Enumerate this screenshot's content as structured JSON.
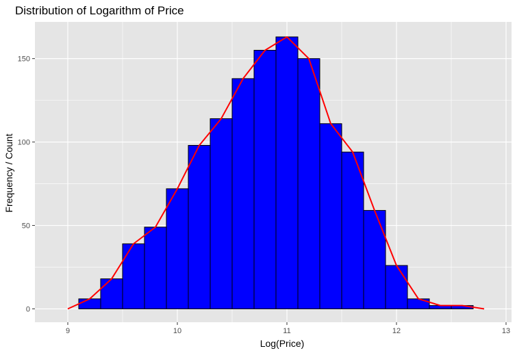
{
  "chart_data": {
    "type": "bar",
    "title": "Distribution of Logarithm of Price",
    "xlabel": "Log(Price)",
    "ylabel": "Frequency / Count",
    "xlim": [
      8.7,
      13.05
    ],
    "ylim": [
      -8,
      172
    ],
    "xticks": [
      9,
      10,
      11,
      12,
      13
    ],
    "yticks": [
      0,
      50,
      100,
      150
    ],
    "bin_width": 0.2,
    "bins": [
      {
        "x0": 9.1,
        "x1": 9.3,
        "count": 6
      },
      {
        "x0": 9.3,
        "x1": 9.5,
        "count": 18
      },
      {
        "x0": 9.5,
        "x1": 9.7,
        "count": 39
      },
      {
        "x0": 9.7,
        "x1": 9.9,
        "count": 49
      },
      {
        "x0": 9.9,
        "x1": 10.1,
        "count": 72
      },
      {
        "x0": 10.1,
        "x1": 10.3,
        "count": 98
      },
      {
        "x0": 10.3,
        "x1": 10.5,
        "count": 114
      },
      {
        "x0": 10.5,
        "x1": 10.7,
        "count": 138
      },
      {
        "x0": 10.7,
        "x1": 10.9,
        "count": 155
      },
      {
        "x0": 10.9,
        "x1": 11.1,
        "count": 163
      },
      {
        "x0": 11.1,
        "x1": 11.3,
        "count": 150
      },
      {
        "x0": 11.3,
        "x1": 11.5,
        "count": 111
      },
      {
        "x0": 11.5,
        "x1": 11.7,
        "count": 94
      },
      {
        "x0": 11.7,
        "x1": 11.9,
        "count": 59
      },
      {
        "x0": 11.9,
        "x1": 12.1,
        "count": 26
      },
      {
        "x0": 12.1,
        "x1": 12.3,
        "count": 6
      },
      {
        "x0": 12.3,
        "x1": 12.5,
        "count": 2
      },
      {
        "x0": 12.5,
        "x1": 12.7,
        "count": 2
      }
    ],
    "frequency_polygon": {
      "x": [
        9.0,
        9.2,
        9.4,
        9.6,
        9.8,
        10.0,
        10.2,
        10.4,
        10.6,
        10.8,
        11.0,
        11.2,
        11.4,
        11.6,
        11.8,
        12.0,
        12.2,
        12.4,
        12.6,
        12.8
      ],
      "y": [
        0,
        6,
        18,
        39,
        49,
        72,
        98,
        114,
        138,
        155,
        163,
        150,
        111,
        94,
        59,
        26,
        6,
        2,
        2,
        0
      ]
    },
    "grid": true,
    "legend": "none",
    "colors": {
      "bar_fill": "#0000ff",
      "bar_outline": "#000000",
      "line": "#ff0000",
      "panel": "#e5e5e5",
      "grid": "#ffffff"
    }
  }
}
